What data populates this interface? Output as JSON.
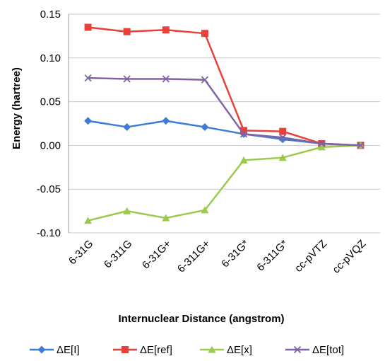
{
  "chart_data": {
    "type": "line",
    "categories": [
      "6-31G",
      "6-311G",
      "6-31G+",
      "6-311G+",
      "6-31G*",
      "6-311G*",
      "cc-pVTZ",
      "cc-pVQZ"
    ],
    "series": [
      {
        "name": "ΔE[I]",
        "color": "#3b7dd8",
        "marker": "diamond",
        "values": [
          0.028,
          0.021,
          0.028,
          0.021,
          0.013,
          0.007,
          0.002,
          0.0
        ]
      },
      {
        "name": "ΔE[ref]",
        "color": "#e8413c",
        "marker": "square",
        "values": [
          0.135,
          0.13,
          0.132,
          0.128,
          0.017,
          0.016,
          0.002,
          0.0
        ]
      },
      {
        "name": "ΔE[x]",
        "color": "#9bcb4e",
        "marker": "triangle",
        "values": [
          -0.086,
          -0.075,
          -0.083,
          -0.074,
          -0.017,
          -0.014,
          -0.002,
          0.0
        ]
      },
      {
        "name": "ΔE[tot]",
        "color": "#8064a2",
        "marker": "x",
        "values": [
          0.077,
          0.076,
          0.076,
          0.075,
          0.013,
          0.009,
          0.002,
          0.0
        ]
      }
    ],
    "xlabel": "Internuclear Distance (angstrom)",
    "ylabel": "Energy (hartree)",
    "ylim": [
      -0.1,
      0.15
    ],
    "yticks": [
      "-0.10",
      "-0.05",
      "0.00",
      "0.05",
      "0.10",
      "0.15"
    ],
    "grid": "horizontal",
    "legend": "bottom"
  }
}
